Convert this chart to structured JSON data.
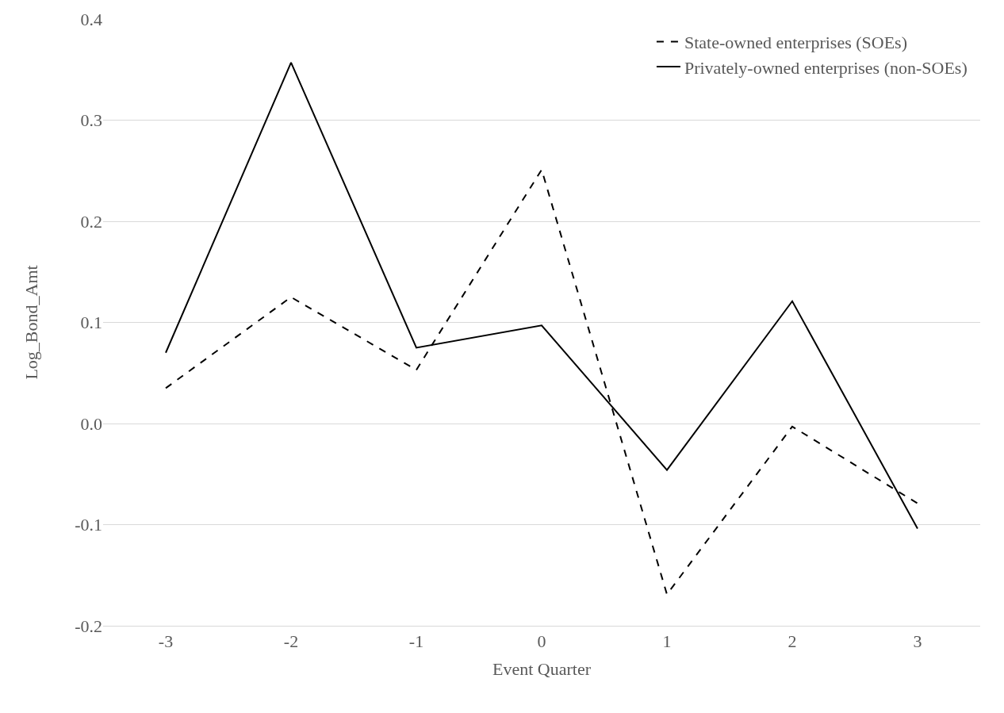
{
  "chart_data": {
    "type": "line",
    "xlabel": "Event Quarter",
    "ylabel": "Log_Bond_Amt",
    "categories": [
      "-3",
      "-2",
      "-1",
      "0",
      "1",
      "2",
      "3"
    ],
    "series": [
      {
        "name": "State-owned enterprises (SOEs)",
        "color": "#000000",
        "line_style": "dashed",
        "values": [
          0.035,
          0.125,
          0.053,
          0.251,
          -0.169,
          -0.003,
          -0.079
        ]
      },
      {
        "name": "Privately-owned enterprises (non-SOEs)",
        "color": "#000000",
        "line_style": "solid",
        "values": [
          0.07,
          0.357,
          0.075,
          0.097,
          -0.046,
          0.121,
          -0.104
        ]
      }
    ],
    "ylim": [
      -0.2,
      0.4
    ],
    "yticks": [
      {
        "value": -0.2,
        "label": "-0.2"
      },
      {
        "value": -0.1,
        "label": "-0.1"
      },
      {
        "value": 0,
        "label": "0.0"
      },
      {
        "value": 0.1,
        "label": "0.1"
      },
      {
        "value": 0.2,
        "label": "0.2"
      },
      {
        "value": 0.3,
        "label": "0.3"
      },
      {
        "value": 0.4,
        "label": "0.4"
      }
    ],
    "grid": "y",
    "legend": "top right",
    "marker": "none"
  }
}
